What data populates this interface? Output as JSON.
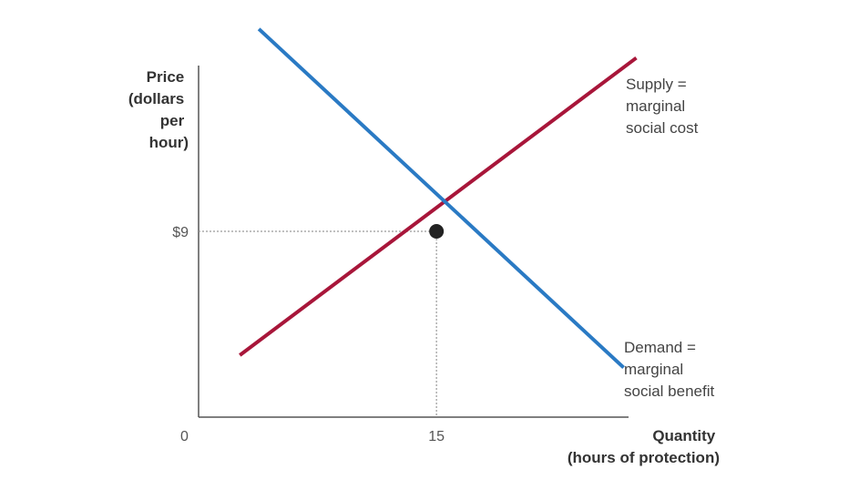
{
  "chart_data": {
    "type": "line",
    "ylabel_lines": [
      "Price",
      "(dollars",
      "per",
      "hour)"
    ],
    "xlabel_lines": [
      "Quantity",
      "(hours of protection)"
    ],
    "origin_label": "0",
    "y_tick_label": "$9",
    "x_tick_label": "15",
    "x_marked": 15,
    "y_marked": 9,
    "equilibrium": {
      "x": 15,
      "y": 9
    },
    "grid": false,
    "series": [
      {
        "label_lines": [
          "Supply =",
          "marginal",
          "social cost"
        ],
        "color": "#a8163a",
        "points": [
          [
            2.6,
            3.0
          ],
          [
            27.6,
            17.4
          ]
        ]
      },
      {
        "label_lines": [
          "Demand =",
          "marginal",
          "social benefit"
        ],
        "color": "#2a7ac4",
        "points": [
          [
            3.8,
            18.8
          ],
          [
            26.8,
            2.4
          ]
        ]
      }
    ]
  }
}
